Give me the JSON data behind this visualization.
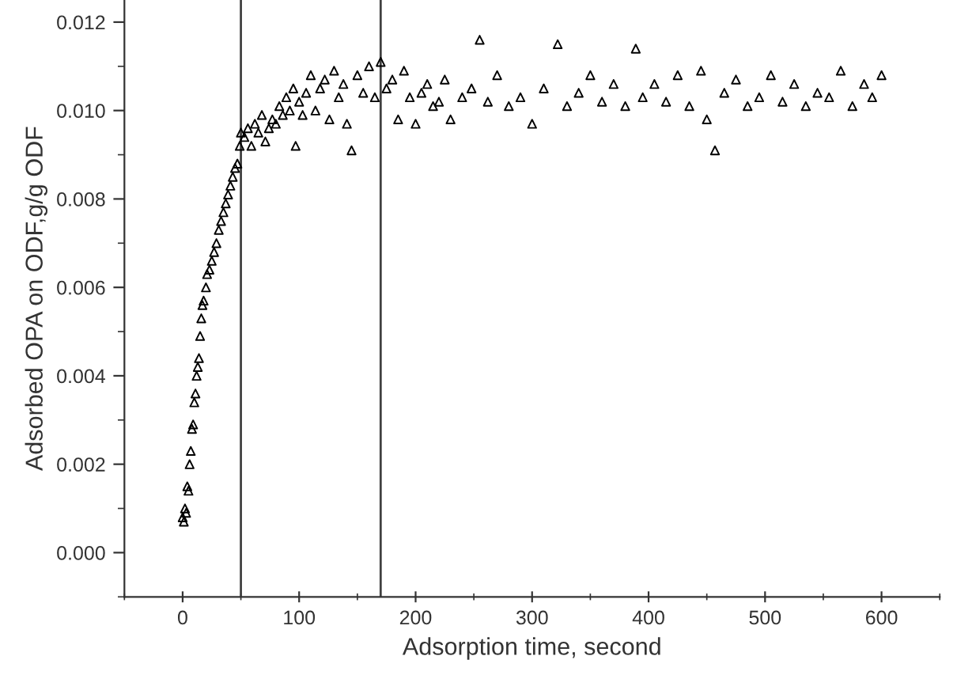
{
  "chart_data": {
    "type": "scatter",
    "xlabel": "Adsorption time, second",
    "ylabel": "Adsorbed OPA on ODF,g/g ODF",
    "xlim": [
      -50,
      650
    ],
    "ylim": [
      -0.001,
      0.0125
    ],
    "xticks": [
      {
        "value": -50,
        "label": null
      },
      0,
      {
        "value": 50,
        "label": null
      },
      100,
      {
        "value": 150,
        "label": null
      },
      200,
      {
        "value": 250,
        "label": null
      },
      300,
      {
        "value": 350,
        "label": null
      },
      400,
      {
        "value": 450,
        "label": null
      },
      500,
      {
        "value": 550,
        "label": null
      },
      600,
      {
        "value": 650,
        "label": null
      }
    ],
    "yticks": [
      {
        "value": -0.001,
        "label": null
      },
      {
        "value": 0,
        "label": "0.000"
      },
      {
        "value": 0.001,
        "label": null
      },
      {
        "value": 0.002,
        "label": "0.002"
      },
      {
        "value": 0.003,
        "label": null
      },
      {
        "value": 0.004,
        "label": "0.004"
      },
      {
        "value": 0.005,
        "label": null
      },
      {
        "value": 0.006,
        "label": "0.006"
      },
      {
        "value": 0.007,
        "label": null
      },
      {
        "value": 0.008,
        "label": "0.008"
      },
      {
        "value": 0.009,
        "label": null
      },
      {
        "value": 0.01,
        "label": "0.010"
      },
      {
        "value": 0.011,
        "label": null
      },
      {
        "value": 0.012,
        "label": "0.012"
      }
    ],
    "marker": "triangle",
    "grid": false,
    "legend": false,
    "ref_lines": [
      {
        "axis": "x",
        "value": 50,
        "color": "#404040"
      },
      {
        "axis": "x",
        "value": 170,
        "color": "#404040"
      }
    ],
    "series": [
      {
        "color": "#000000",
        "x": [
          0,
          1,
          2,
          3,
          4,
          5,
          6,
          7,
          8,
          9,
          10,
          11,
          12,
          13,
          14,
          15,
          16,
          17,
          18,
          20,
          21,
          23,
          25,
          27,
          29,
          31,
          33,
          35,
          37,
          39,
          41,
          43,
          45,
          47,
          49,
          50,
          53,
          56,
          59,
          62,
          65,
          68,
          71,
          74,
          77,
          80,
          83,
          86,
          89,
          92,
          95,
          97,
          100,
          103,
          106,
          110,
          114,
          118,
          122,
          126,
          130,
          134,
          138,
          141,
          145,
          150,
          155,
          160,
          165,
          170,
          175,
          180,
          185,
          190,
          195,
          200,
          205,
          210,
          215,
          220,
          225,
          230,
          240,
          248,
          255,
          262,
          270,
          280,
          290,
          300,
          310,
          322,
          330,
          340,
          350,
          360,
          370,
          380,
          389,
          395,
          405,
          415,
          425,
          435,
          445,
          450,
          457,
          465,
          475,
          485,
          495,
          505,
          515,
          525,
          535,
          545,
          555,
          565,
          575,
          585,
          592,
          600
        ],
        "values": [
          0.0008,
          0.0007,
          0.001,
          0.0009,
          0.0015,
          0.0014,
          0.002,
          0.0023,
          0.0028,
          0.0029,
          0.0034,
          0.0036,
          0.004,
          0.0042,
          0.0044,
          0.0049,
          0.0053,
          0.0056,
          0.0057,
          0.006,
          0.0063,
          0.0064,
          0.0066,
          0.0068,
          0.007,
          0.0073,
          0.0075,
          0.0077,
          0.0079,
          0.0081,
          0.0083,
          0.0085,
          0.0087,
          0.0088,
          0.0092,
          0.0095,
          0.0094,
          0.0096,
          0.0092,
          0.0097,
          0.0095,
          0.0099,
          0.0093,
          0.0096,
          0.0098,
          0.0097,
          0.0101,
          0.0099,
          0.0103,
          0.01,
          0.0105,
          0.0092,
          0.0102,
          0.0099,
          0.0104,
          0.0108,
          0.01,
          0.0105,
          0.0107,
          0.0098,
          0.0109,
          0.0103,
          0.0106,
          0.0097,
          0.0091,
          0.0108,
          0.0104,
          0.011,
          0.0103,
          0.0111,
          0.0105,
          0.0107,
          0.0098,
          0.0109,
          0.0103,
          0.0097,
          0.0104,
          0.0106,
          0.0101,
          0.0102,
          0.0107,
          0.0098,
          0.0103,
          0.0105,
          0.0116,
          0.0102,
          0.0108,
          0.0101,
          0.0103,
          0.0097,
          0.0105,
          0.0115,
          0.0101,
          0.0104,
          0.0108,
          0.0102,
          0.0106,
          0.0101,
          0.0114,
          0.0103,
          0.0106,
          0.0102,
          0.0108,
          0.0101,
          0.0109,
          0.0098,
          0.0091,
          0.0104,
          0.0107,
          0.0101,
          0.0103,
          0.0108,
          0.0102,
          0.0106,
          0.0101,
          0.0104,
          0.0103,
          0.0109,
          0.0101,
          0.0106,
          0.0103,
          0.0108
        ]
      }
    ]
  }
}
